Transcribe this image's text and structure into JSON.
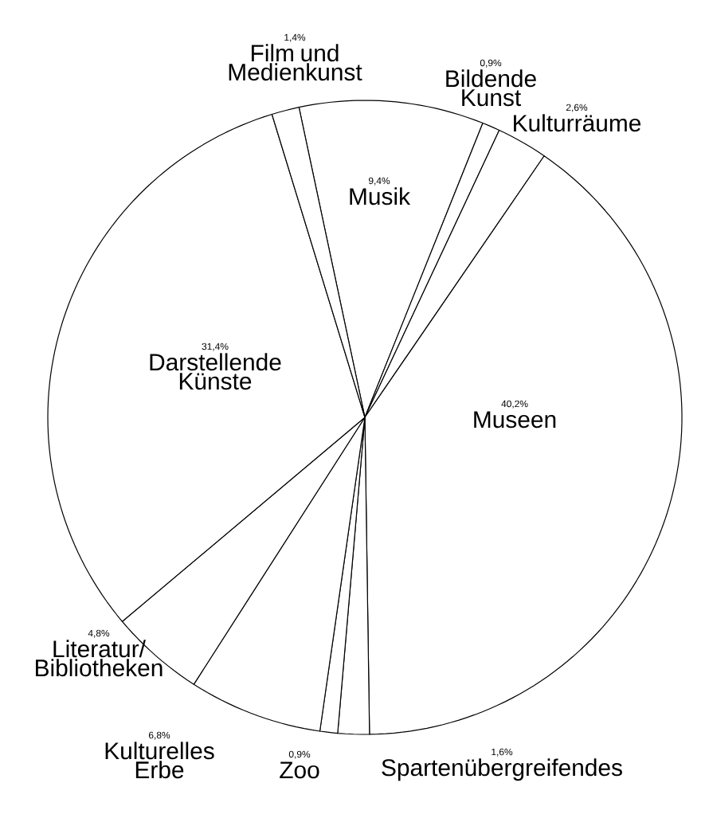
{
  "chart_data": {
    "type": "pie",
    "categories": [
      "Musik",
      "Bildende Kunst",
      "Kulturräume",
      "Museen",
      "Spartenübergreifendes",
      "Zoo",
      "Kulturelles Erbe",
      "Literatur/ Bibliotheken",
      "Darstellende Künste",
      "Film und Medienkunst"
    ],
    "values": [
      9.4,
      0.9,
      2.6,
      40.2,
      1.6,
      0.9,
      6.8,
      4.8,
      31.4,
      1.4
    ],
    "value_labels": [
      "9,4%",
      "0,9%",
      "2,6%",
      "40,2%",
      "1,6%",
      "0,9%",
      "6,8%",
      "4,8%",
      "31,4%",
      "1,4%"
    ],
    "colors": [
      "#ffffff",
      "#ffffff",
      "#ffffff",
      "#ffffff",
      "#ffffff",
      "#ffffff",
      "#ffffff",
      "#ffffff",
      "#ffffff",
      "#ffffff"
    ]
  }
}
